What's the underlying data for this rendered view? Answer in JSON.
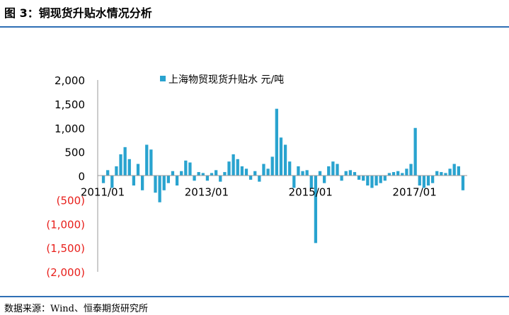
{
  "figure": {
    "title": "图 3：铜现货升贴水情况分析",
    "source": "数据来源：Wind、恒泰期货研究所"
  },
  "colors": {
    "series": "#29a3cf",
    "negative_tick_label": "#e8201c",
    "positive_tick_label": "#000000",
    "axis": "#999999",
    "rule": "#2f6fb5"
  },
  "chart_data": {
    "type": "bar",
    "series": [
      {
        "name": "上海物贸现货升贴水 元/吨",
        "points": [
          [
            "2011-01",
            -150
          ],
          [
            "2011-02",
            120
          ],
          [
            "2011-03",
            -250
          ],
          [
            "2011-04",
            200
          ],
          [
            "2011-05",
            450
          ],
          [
            "2011-06",
            600
          ],
          [
            "2011-07",
            350
          ],
          [
            "2011-08",
            -200
          ],
          [
            "2011-09",
            250
          ],
          [
            "2011-10",
            -300
          ],
          [
            "2011-11",
            650
          ],
          [
            "2011-12",
            550
          ],
          [
            "2012-01",
            -350
          ],
          [
            "2012-02",
            -550
          ],
          [
            "2012-03",
            -300
          ],
          [
            "2012-04",
            -150
          ],
          [
            "2012-05",
            100
          ],
          [
            "2012-06",
            -200
          ],
          [
            "2012-07",
            100
          ],
          [
            "2012-08",
            320
          ],
          [
            "2012-09",
            280
          ],
          [
            "2012-10",
            -100
          ],
          [
            "2012-11",
            80
          ],
          [
            "2012-12",
            60
          ],
          [
            "2013-01",
            -100
          ],
          [
            "2013-02",
            60
          ],
          [
            "2013-03",
            120
          ],
          [
            "2013-04",
            -120
          ],
          [
            "2013-05",
            80
          ],
          [
            "2013-06",
            300
          ],
          [
            "2013-07",
            450
          ],
          [
            "2013-08",
            350
          ],
          [
            "2013-09",
            200
          ],
          [
            "2013-10",
            150
          ],
          [
            "2013-11",
            -80
          ],
          [
            "2013-12",
            100
          ],
          [
            "2014-01",
            -120
          ],
          [
            "2014-02",
            250
          ],
          [
            "2014-03",
            150
          ],
          [
            "2014-04",
            400
          ],
          [
            "2014-05",
            1400
          ],
          [
            "2014-06",
            800
          ],
          [
            "2014-07",
            650
          ],
          [
            "2014-08",
            300
          ],
          [
            "2014-09",
            -250
          ],
          [
            "2014-10",
            200
          ],
          [
            "2014-11",
            100
          ],
          [
            "2014-12",
            120
          ],
          [
            "2015-01",
            -250
          ],
          [
            "2015-02",
            -1400
          ],
          [
            "2015-03",
            100
          ],
          [
            "2015-04",
            -150
          ],
          [
            "2015-05",
            200
          ],
          [
            "2015-06",
            300
          ],
          [
            "2015-07",
            250
          ],
          [
            "2015-08",
            -100
          ],
          [
            "2015-09",
            100
          ],
          [
            "2015-10",
            120
          ],
          [
            "2015-11",
            80
          ],
          [
            "2015-12",
            -80
          ],
          [
            "2016-01",
            -100
          ],
          [
            "2016-02",
            -200
          ],
          [
            "2016-03",
            -250
          ],
          [
            "2016-04",
            -200
          ],
          [
            "2016-05",
            -150
          ],
          [
            "2016-06",
            -100
          ],
          [
            "2016-07",
            60
          ],
          [
            "2016-08",
            80
          ],
          [
            "2016-09",
            100
          ],
          [
            "2016-10",
            60
          ],
          [
            "2016-11",
            150
          ],
          [
            "2016-12",
            250
          ],
          [
            "2017-01",
            1000
          ],
          [
            "2017-02",
            -200
          ],
          [
            "2017-03",
            -250
          ],
          [
            "2017-04",
            -200
          ],
          [
            "2017-05",
            -150
          ],
          [
            "2017-06",
            100
          ],
          [
            "2017-07",
            80
          ],
          [
            "2017-08",
            60
          ],
          [
            "2017-09",
            150
          ],
          [
            "2017-10",
            250
          ],
          [
            "2017-11",
            200
          ],
          [
            "2017-12",
            -300
          ]
        ]
      }
    ],
    "x_tick_labels": [
      "2011/01",
      "2013/01",
      "2015/01",
      "2017/01"
    ],
    "x_tick_dates": [
      "2011-01",
      "2013-01",
      "2015-01",
      "2017-01"
    ],
    "y_tick_labels": [
      "2,000",
      "1,500",
      "1,000",
      "500",
      "0",
      "(500)",
      "(1,000)",
      "(1,500)",
      "(2,000)"
    ],
    "y_ticks": [
      2000,
      1500,
      1000,
      500,
      0,
      -500,
      -1000,
      -1500,
      -2000
    ],
    "ylim": [
      -2000,
      2000
    ],
    "xlim": [
      "2011-01",
      "2017-12"
    ],
    "grid": false,
    "legend_placement": "top"
  }
}
